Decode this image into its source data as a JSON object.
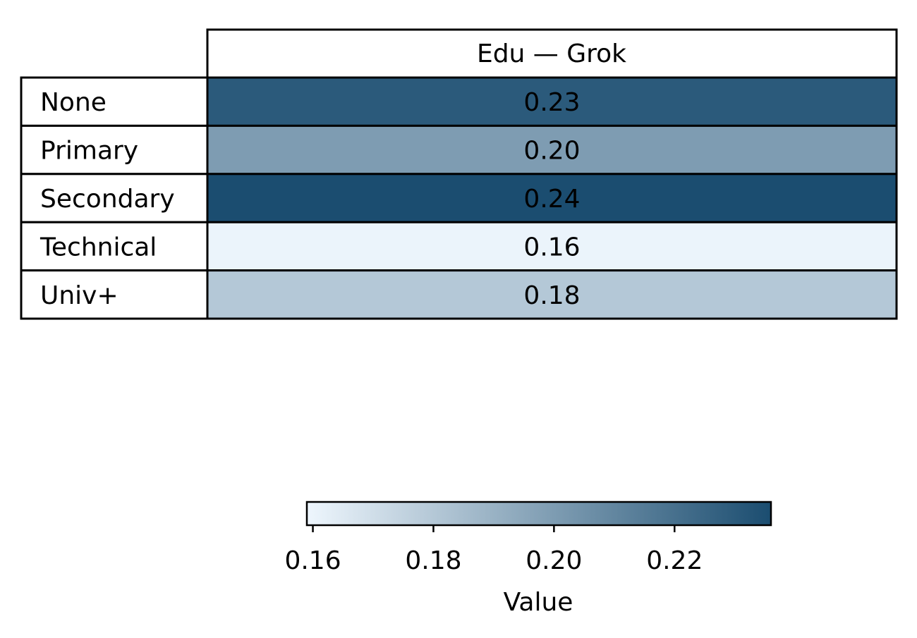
{
  "chart_data": {
    "type": "heatmap",
    "column_header": "Edu — Grok",
    "rows": [
      "None",
      "Primary",
      "Secondary",
      "Technical",
      "Univ+"
    ],
    "values": [
      0.23,
      0.2,
      0.24,
      0.16,
      0.18
    ],
    "value_labels": [
      "0.23",
      "0.20",
      "0.24",
      "0.16",
      "0.18"
    ],
    "colorbar": {
      "label": "Value",
      "range": [
        0.159,
        0.236
      ],
      "ticks": [
        0.16,
        0.18,
        0.2,
        0.22
      ],
      "tick_labels": [
        "0.16",
        "0.18",
        "0.20",
        "0.22"
      ],
      "color_low": "#eef6fd",
      "color_high": "#1b4d70",
      "orientation": "horizontal",
      "placement": "bottom"
    },
    "grid": true
  }
}
